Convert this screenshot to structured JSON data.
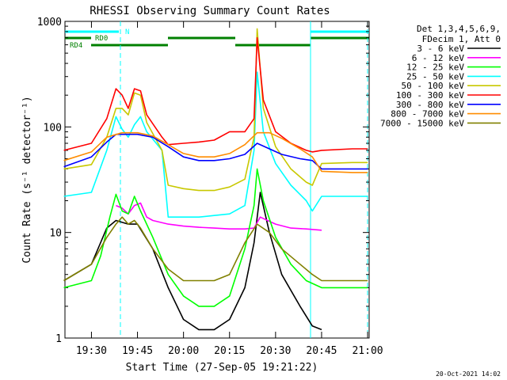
{
  "chart_data": {
    "type": "line",
    "title": "RHESSI Observing Summary Count Rates",
    "xlabel": "Start Time (27-Sep-05 19:21:22)",
    "ylabel": "Count Rate (s⁻¹ detector⁻¹)",
    "y_scale": "log",
    "ylim": [
      1,
      1000
    ],
    "xlim": [
      "19:21:22",
      "21:00:30"
    ],
    "x_ticks": [
      "19:30",
      "19:45",
      "20:00",
      "20:15",
      "20:30",
      "20:45",
      "21:00"
    ],
    "y_ticks": [
      "1",
      "10",
      "100",
      "1000"
    ],
    "footer": "20-Oct-2021 14:02",
    "legend_position": "top-right",
    "legend_header": [
      "Det 1,3,4,5,6,9,",
      "FDecim 1, Att 0"
    ],
    "series": [
      {
        "name": "3 - 6 keV",
        "color": "#000000",
        "x": [
          "19:21",
          "19:30",
          "19:35",
          "19:38",
          "19:42",
          "19:45",
          "19:50",
          "19:55",
          "20:00",
          "20:05",
          "20:10",
          "20:15",
          "20:20",
          "20:23",
          "20:25",
          "20:28",
          "20:32",
          "20:38",
          "20:42",
          "20:45"
        ],
        "y": [
          3.5,
          5,
          11,
          13,
          12,
          12,
          7,
          3,
          1.5,
          1.2,
          1.2,
          1.5,
          3,
          8,
          24,
          10,
          4,
          2,
          1.3,
          1.2
        ]
      },
      {
        "name": "6 - 12 keV",
        "color": "#ff00ff",
        "x": [
          "19:38",
          "19:40",
          "19:42",
          "19:44",
          "19:46",
          "19:48",
          "19:50",
          "19:55",
          "20:00",
          "20:05",
          "20:10",
          "20:15",
          "20:20",
          "20:23",
          "20:25",
          "20:30",
          "20:35",
          "20:40",
          "20:45"
        ],
        "y": [
          18,
          17,
          15,
          18,
          19,
          14,
          13,
          12,
          11.5,
          11.2,
          11,
          10.8,
          10.8,
          11,
          14,
          12,
          11,
          10.8,
          10.5
        ]
      },
      {
        "name": "12 - 25 keV",
        "color": "#00ff00",
        "x": [
          "19:21",
          "19:30",
          "19:33",
          "19:36",
          "19:38",
          "19:40",
          "19:42",
          "19:44",
          "19:46",
          "19:50",
          "19:55",
          "20:00",
          "20:05",
          "20:10",
          "20:15",
          "20:20",
          "20:23",
          "20:24",
          "20:26",
          "20:30",
          "20:35",
          "20:40",
          "20:45",
          "20:55",
          "21:00"
        ],
        "y": [
          3,
          3.5,
          6,
          14,
          23,
          16,
          15,
          22,
          16,
          9,
          4,
          2.5,
          2,
          2,
          2.5,
          7,
          18,
          40,
          20,
          9,
          5,
          3.5,
          3,
          3,
          3
        ]
      },
      {
        "name": "25 - 50 keV",
        "color": "#00ffff",
        "x": [
          "19:21",
          "19:30",
          "19:35",
          "19:38",
          "19:40",
          "19:42",
          "19:44",
          "19:46",
          "19:48",
          "19:53",
          "19:55",
          "20:00",
          "20:05",
          "20:10",
          "20:15",
          "20:20",
          "20:23",
          "20:24",
          "20:26",
          "20:30",
          "20:35",
          "20:40",
          "20:42",
          "20:45",
          "20:55",
          "21:00"
        ],
        "y": [
          22,
          24,
          60,
          125,
          95,
          80,
          105,
          125,
          90,
          60,
          14,
          14,
          14,
          14.5,
          15,
          18,
          60,
          330,
          90,
          45,
          28,
          20,
          16,
          22,
          22,
          22
        ]
      },
      {
        "name": "50 - 100 keV",
        "color": "#c8c800",
        "x": [
          "19:21",
          "19:30",
          "19:35",
          "19:38",
          "19:40",
          "19:42",
          "19:44",
          "19:46",
          "19:48",
          "19:53",
          "19:55",
          "20:00",
          "20:05",
          "20:10",
          "20:15",
          "20:20",
          "20:23",
          "20:24",
          "20:26",
          "20:30",
          "20:35",
          "20:40",
          "20:42",
          "20:45",
          "20:55",
          "21:00"
        ],
        "y": [
          40,
          44,
          80,
          150,
          150,
          130,
          210,
          200,
          110,
          60,
          28,
          26,
          25,
          25,
          27,
          32,
          80,
          850,
          150,
          65,
          40,
          30,
          28,
          45,
          46,
          46
        ]
      },
      {
        "name": "100 - 300 keV",
        "color": "#ff0000",
        "x": [
          "19:21",
          "19:30",
          "19:35",
          "19:38",
          "19:40",
          "19:42",
          "19:44",
          "19:46",
          "19:48",
          "19:53",
          "19:55",
          "20:00",
          "20:05",
          "20:10",
          "20:15",
          "20:20",
          "20:23",
          "20:24",
          "20:26",
          "20:30",
          "20:35",
          "20:40",
          "20:42",
          "20:45",
          "20:55",
          "21:00"
        ],
        "y": [
          60,
          70,
          120,
          230,
          200,
          150,
          230,
          220,
          130,
          80,
          68,
          70,
          72,
          75,
          90,
          90,
          120,
          700,
          180,
          90,
          70,
          60,
          58,
          60,
          62,
          62
        ]
      },
      {
        "name": "300 - 800 keV",
        "color": "#0000ff",
        "x": [
          "19:21",
          "19:30",
          "19:35",
          "19:38",
          "19:45",
          "19:50",
          "19:55",
          "20:00",
          "20:05",
          "20:10",
          "20:15",
          "20:20",
          "20:24",
          "20:28",
          "20:32",
          "20:38",
          "20:42",
          "20:45",
          "20:55",
          "21:00"
        ],
        "y": [
          42,
          52,
          72,
          85,
          85,
          80,
          65,
          52,
          48,
          48,
          50,
          55,
          70,
          62,
          55,
          50,
          48,
          40,
          40,
          40
        ]
      },
      {
        "name": "800 - 7000 keV",
        "color": "#ff8c00",
        "x": [
          "19:21",
          "19:30",
          "19:35",
          "19:40",
          "19:45",
          "19:50",
          "19:55",
          "20:00",
          "20:05",
          "20:10",
          "20:15",
          "20:20",
          "20:24",
          "20:28",
          "20:32",
          "20:38",
          "20:42",
          "20:45",
          "20:55",
          "21:00"
        ],
        "y": [
          48,
          58,
          80,
          88,
          88,
          82,
          68,
          56,
          52,
          52,
          56,
          68,
          88,
          88,
          78,
          62,
          52,
          38,
          37,
          37
        ]
      },
      {
        "name": "7000 - 15000 keV",
        "color": "#808000",
        "x": [
          "19:21",
          "19:30",
          "19:35",
          "19:38",
          "19:40",
          "19:42",
          "19:44",
          "19:46",
          "19:50",
          "19:55",
          "20:00",
          "20:05",
          "20:10",
          "20:15",
          "20:20",
          "20:24",
          "20:28",
          "20:32",
          "20:38",
          "20:42",
          "20:45",
          "20:55",
          "21:00"
        ],
        "y": [
          3.5,
          5,
          9,
          12,
          14,
          12,
          13,
          11,
          7,
          4.5,
          3.5,
          3.5,
          3.5,
          4,
          8,
          12,
          10,
          7,
          5,
          4,
          3.5,
          3.5,
          3.5
        ]
      }
    ],
    "annotations": {
      "attenuator_labels": [
        "RD0",
        "RD4",
        "N"
      ]
    }
  }
}
